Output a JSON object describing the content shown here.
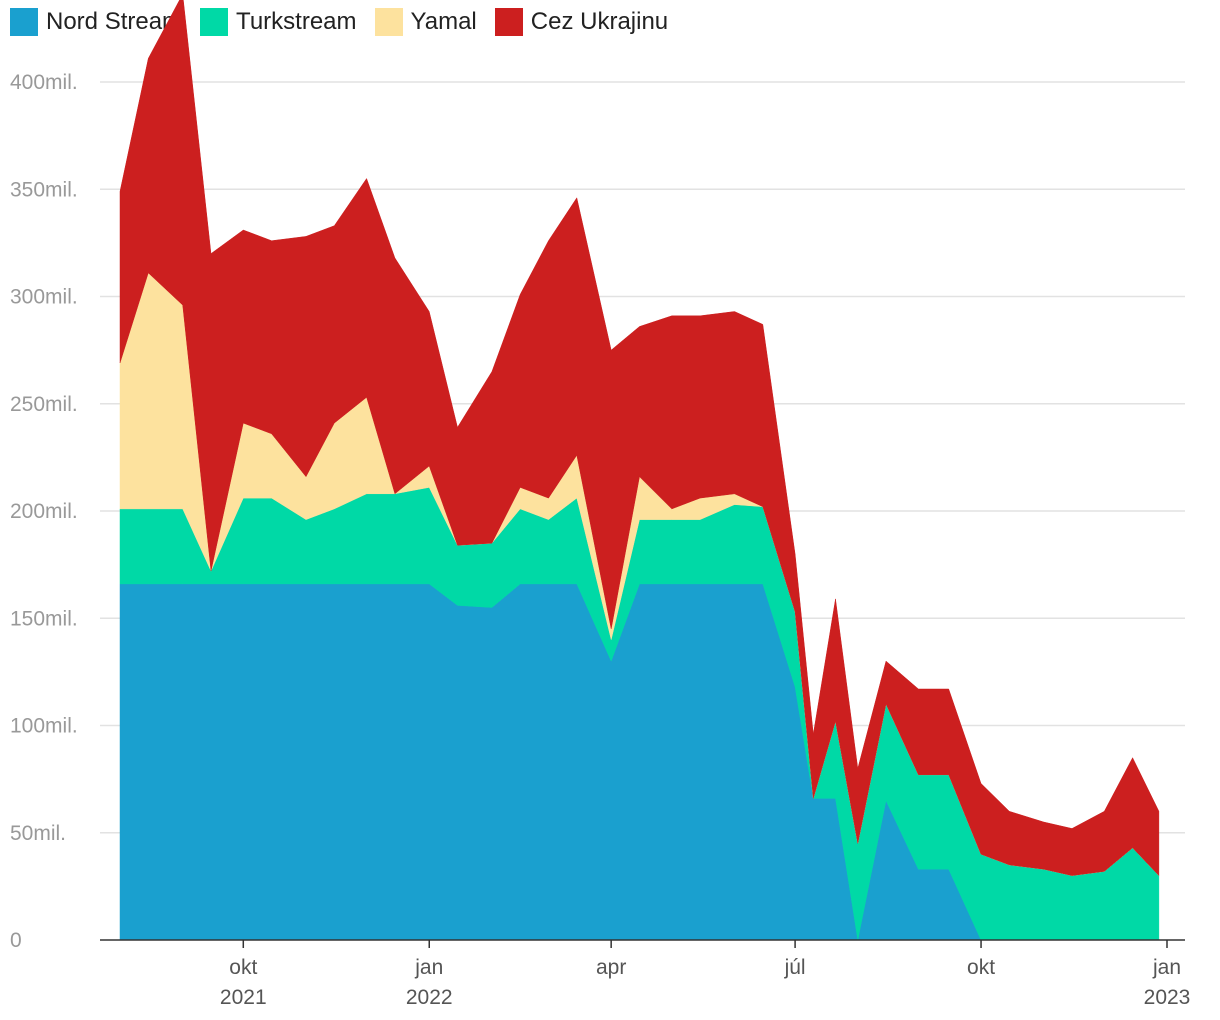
{
  "chart_data": {
    "type": "area",
    "stacked": true,
    "ylim": [
      0,
      400000000
    ],
    "y_ticks": [
      {
        "value": 0,
        "label": "0"
      },
      {
        "value": 50000000,
        "label": "50mil."
      },
      {
        "value": 100000000,
        "label": "100mil."
      },
      {
        "value": 150000000,
        "label": "150mil."
      },
      {
        "value": 200000000,
        "label": "200mil."
      },
      {
        "value": 250000000,
        "label": "250mil."
      },
      {
        "value": 300000000,
        "label": "300mil."
      },
      {
        "value": 350000000,
        "label": "350mil."
      },
      {
        "value": 400000000,
        "label": "400mil."
      }
    ],
    "x_ticks": [
      {
        "date": "2021-10-01",
        "label": "okt",
        "year": "2021"
      },
      {
        "date": "2022-01-01",
        "label": "jan",
        "year": "2022"
      },
      {
        "date": "2022-04-01",
        "label": "apr",
        "year": ""
      },
      {
        "date": "2022-07-01",
        "label": "júl",
        "year": ""
      },
      {
        "date": "2022-10-01",
        "label": "okt",
        "year": ""
      },
      {
        "date": "2023-01-01",
        "label": "jan",
        "year": "2023"
      }
    ],
    "date_range": [
      "2021-08-01",
      "2023-01-01"
    ],
    "x": [
      "2021-08-01",
      "2021-08-15",
      "2021-09-01",
      "2021-09-15",
      "2021-10-01",
      "2021-10-15",
      "2021-11-01",
      "2021-11-15",
      "2021-12-01",
      "2021-12-15",
      "2022-01-01",
      "2022-01-15",
      "2022-02-01",
      "2022-02-15",
      "2022-03-01",
      "2022-03-15",
      "2022-04-01",
      "2022-04-15",
      "2022-05-01",
      "2022-05-15",
      "2022-06-01",
      "2022-06-15",
      "2022-07-01",
      "2022-07-10",
      "2022-07-21",
      "2022-08-01",
      "2022-08-15",
      "2022-08-31",
      "2022-09-15",
      "2022-10-01",
      "2022-10-15",
      "2022-11-01",
      "2022-11-15",
      "2022-12-01",
      "2022-12-15",
      "2022-12-28"
    ],
    "series": [
      {
        "name": "Nord Stream",
        "color": "#1aa0cf",
        "values": [
          166,
          166,
          166,
          166,
          166,
          166,
          166,
          166,
          166,
          166,
          166,
          156,
          155,
          166,
          166,
          166,
          130,
          166,
          166,
          166,
          166,
          166,
          118,
          66,
          66,
          0,
          65,
          33,
          33,
          0,
          0,
          0,
          0,
          0,
          0,
          0
        ]
      },
      {
        "name": "Turkstream",
        "color": "#00d9a6",
        "values": [
          35,
          35,
          35,
          6,
          40,
          40,
          30,
          35,
          42,
          42,
          45,
          28,
          30,
          35,
          30,
          40,
          10,
          30,
          30,
          30,
          37,
          36,
          35,
          0,
          36,
          45,
          45,
          44,
          44,
          40,
          35,
          33,
          30,
          32,
          43,
          30
        ]
      },
      {
        "name": "Yamal",
        "color": "#fde29e",
        "values": [
          68,
          110,
          95,
          0,
          35,
          30,
          20,
          40,
          45,
          0,
          10,
          0,
          0,
          10,
          10,
          20,
          5,
          20,
          5,
          10,
          5,
          0,
          0,
          0,
          0,
          0,
          0,
          0,
          0,
          0,
          0,
          0,
          0,
          0,
          0,
          0
        ]
      },
      {
        "name": "Cez Ukrajinu",
        "color": "#cc1f1f",
        "values": [
          80,
          100,
          145,
          148,
          90,
          90,
          112,
          92,
          102,
          110,
          72,
          55,
          80,
          90,
          120,
          120,
          130,
          70,
          90,
          85,
          85,
          85,
          27,
          30,
          57,
          35,
          20,
          40,
          40,
          33,
          25,
          22,
          22,
          28,
          42,
          30
        ]
      }
    ]
  }
}
